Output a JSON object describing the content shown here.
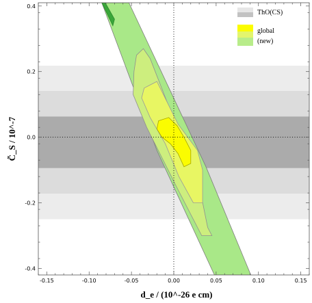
{
  "chart_data": {
    "type": "area",
    "xlabel": "d_e / (10^-26 e cm)",
    "ylabel": "C̃_S / 10^-7",
    "xlim": [
      -0.16,
      0.16
    ],
    "ylim": [
      -0.42,
      0.41
    ],
    "xticks": [
      -0.15,
      -0.1,
      -0.05,
      0.0,
      0.05,
      0.1,
      0.15
    ],
    "xtick_labels": [
      "-0.15",
      "-0.10",
      "-0.05",
      "0.00",
      "0.05",
      "0.10",
      "0.15"
    ],
    "yticks": [
      -0.4,
      -0.2,
      0.0,
      0.2,
      0.4
    ],
    "ytick_labels": [
      "-0.4",
      "-0.2",
      "0.0",
      "0.2",
      "0.4"
    ],
    "grid": false,
    "reference_lines": {
      "x": 0.0,
      "y": 0.0,
      "style": "dotted"
    },
    "legend": {
      "placement": "top-right",
      "entries": [
        {
          "label": "ThO(CS)",
          "colors": [
            "#e6e6e6",
            "#c2c2c2"
          ]
        },
        {
          "label": "global",
          "colors": [
            "#fbfc00",
            "#e3f56d"
          ]
        },
        {
          "label": "(new)",
          "colors": [
            "#b8ec8a",
            "#a2e66c"
          ]
        }
      ]
    },
    "horizontal_bands": [
      {
        "name": "ThO(CS) 95%",
        "y": [
          -0.25,
          0.218
        ],
        "color": "#ececec"
      },
      {
        "name": "ThO(CS) 90%",
        "y": [
          -0.172,
          0.141
        ],
        "color": "#dcdcdc"
      },
      {
        "name": "ThO(CS) 68%",
        "y": [
          -0.094,
          0.063
        ],
        "color": "#ababab"
      }
    ],
    "regions": [
      {
        "name": "(new) 95% band",
        "color": "#a9e888",
        "stroke": "#7c7c7c",
        "points": [
          [
            -0.085,
            0.41
          ],
          [
            -0.053,
            0.41
          ],
          [
            0.038,
            -0.09
          ],
          [
            0.091,
            -0.42
          ],
          [
            0.048,
            -0.42
          ],
          [
            -0.02,
            -0.04
          ]
        ]
      },
      {
        "name": "global 95%",
        "color": "#cdee7e",
        "stroke": "#8f8f8f",
        "points": [
          [
            -0.044,
            0.25
          ],
          [
            -0.036,
            0.27
          ],
          [
            -0.028,
            0.24
          ],
          [
            0.003,
            0.035
          ],
          [
            0.029,
            -0.135
          ],
          [
            0.04,
            -0.275
          ],
          [
            0.045,
            -0.3
          ],
          [
            0.033,
            -0.3
          ],
          [
            0.003,
            -0.15
          ],
          [
            -0.032,
            0.03
          ],
          [
            -0.048,
            0.13
          ],
          [
            -0.047,
            0.2
          ]
        ]
      },
      {
        "name": "global 90%",
        "color": "#e8f663",
        "stroke": "#9a9a9a",
        "points": [
          [
            -0.035,
            0.15
          ],
          [
            -0.02,
            0.17
          ],
          [
            0.005,
            0.04
          ],
          [
            0.028,
            -0.04
          ],
          [
            0.034,
            -0.1
          ],
          [
            0.034,
            -0.2
          ],
          [
            0.023,
            -0.2
          ],
          [
            0.006,
            -0.12
          ],
          [
            -0.01,
            -0.02
          ],
          [
            -0.028,
            0.06
          ],
          [
            -0.038,
            0.12
          ]
        ]
      },
      {
        "name": "global 68%",
        "color": "#fbfc00",
        "stroke": "#a5a500",
        "points": [
          [
            -0.018,
            0.05
          ],
          [
            -0.006,
            0.06
          ],
          [
            0.004,
            0.035
          ],
          [
            0.012,
            0.0
          ],
          [
            0.02,
            -0.04
          ],
          [
            0.02,
            -0.08
          ],
          [
            0.012,
            -0.09
          ],
          [
            0.005,
            -0.05
          ],
          [
            -0.004,
            -0.02
          ],
          [
            -0.014,
            0.0
          ],
          [
            -0.02,
            0.025
          ]
        ]
      },
      {
        "name": "dark green sliver",
        "color": "#3aa63a",
        "stroke": "#2a8a2a",
        "points": [
          [
            -0.085,
            0.41
          ],
          [
            -0.081,
            0.41
          ],
          [
            -0.07,
            0.36
          ],
          [
            -0.072,
            0.34
          ]
        ]
      }
    ]
  }
}
